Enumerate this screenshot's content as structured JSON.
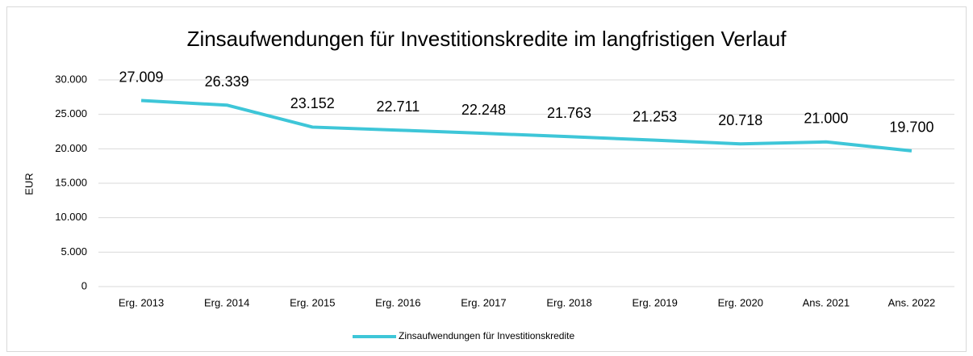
{
  "chart_data": {
    "type": "line",
    "title": "Zinsaufwendungen für Investitionskredite im langfristigen Verlauf",
    "ylabel": "EUR",
    "categories": [
      "Erg. 2013",
      "Erg. 2014",
      "Erg. 2015",
      "Erg. 2016",
      "Erg. 2017",
      "Erg. 2018",
      "Erg. 2019",
      "Erg. 2020",
      "Ans. 2021",
      "Ans. 2022"
    ],
    "series": [
      {
        "name": "Zinsaufwendungen für Investitionskredite",
        "color": "#3ec6d8",
        "values": [
          27009,
          26339,
          23152,
          22711,
          22248,
          21763,
          21253,
          20718,
          21000,
          19700
        ],
        "value_labels": [
          "27.009",
          "26.339",
          "23.152",
          "22.711",
          "22.248",
          "21.763",
          "21.253",
          "20.718",
          "21.000",
          "19.700"
        ]
      }
    ],
    "ylim": [
      0,
      30000
    ],
    "yticks": [
      0,
      {
        "value": 5000,
        "label": "5.000"
      },
      {
        "value": 10000,
        "label": "10.000"
      },
      {
        "value": 15000,
        "label": "15.000"
      },
      {
        "value": 20000,
        "label": "20.000"
      },
      {
        "value": 25000,
        "label": "25.000"
      },
      {
        "value": 30000,
        "label": "30.000"
      }
    ],
    "grid": true,
    "legend": "bottom"
  }
}
